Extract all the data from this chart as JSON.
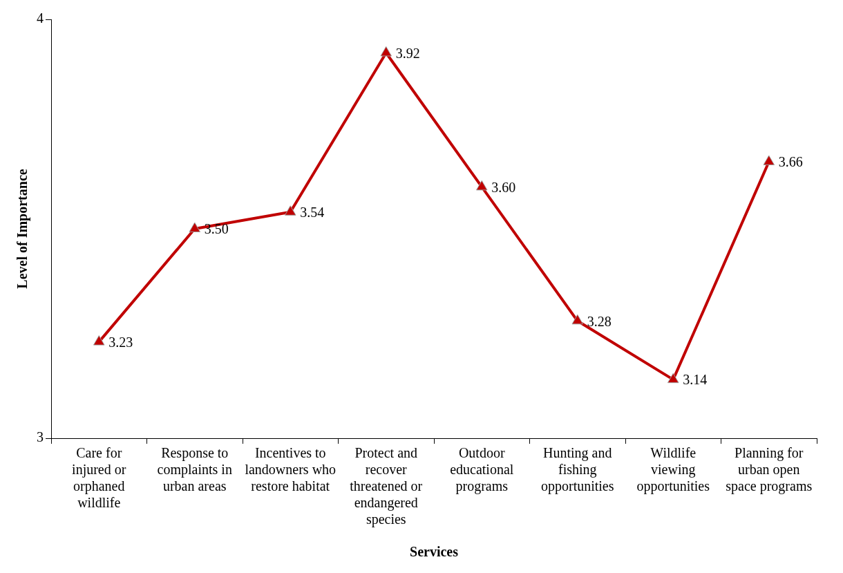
{
  "chart_data": {
    "type": "line",
    "xlabel": "Services",
    "ylabel": "Level of Importance",
    "categories": [
      "Care for injured or orphaned wildlife",
      "Response to complaints in urban areas",
      "Incentives to landowners who restore habitat",
      "Protect and recover threatened or endangered species",
      "Outdoor educational programs",
      "Hunting and fishing opportunities",
      "Wildlife viewing opportunities",
      "Planning for urban open space programs"
    ],
    "series": [
      {
        "color": "#c00000",
        "values": [
          3.23,
          3.5,
          3.54,
          3.92,
          3.6,
          3.28,
          3.14,
          3.66
        ],
        "value_labels": [
          "3.23",
          "3.50",
          "3.54",
          "3.92",
          "3.60",
          "3.28",
          "3.14",
          "3.66"
        ]
      }
    ],
    "ylim": [
      3,
      4
    ],
    "yticks": [
      3,
      4
    ],
    "grid": false,
    "legend": false,
    "marker": "triangle",
    "line_style": "solid"
  }
}
